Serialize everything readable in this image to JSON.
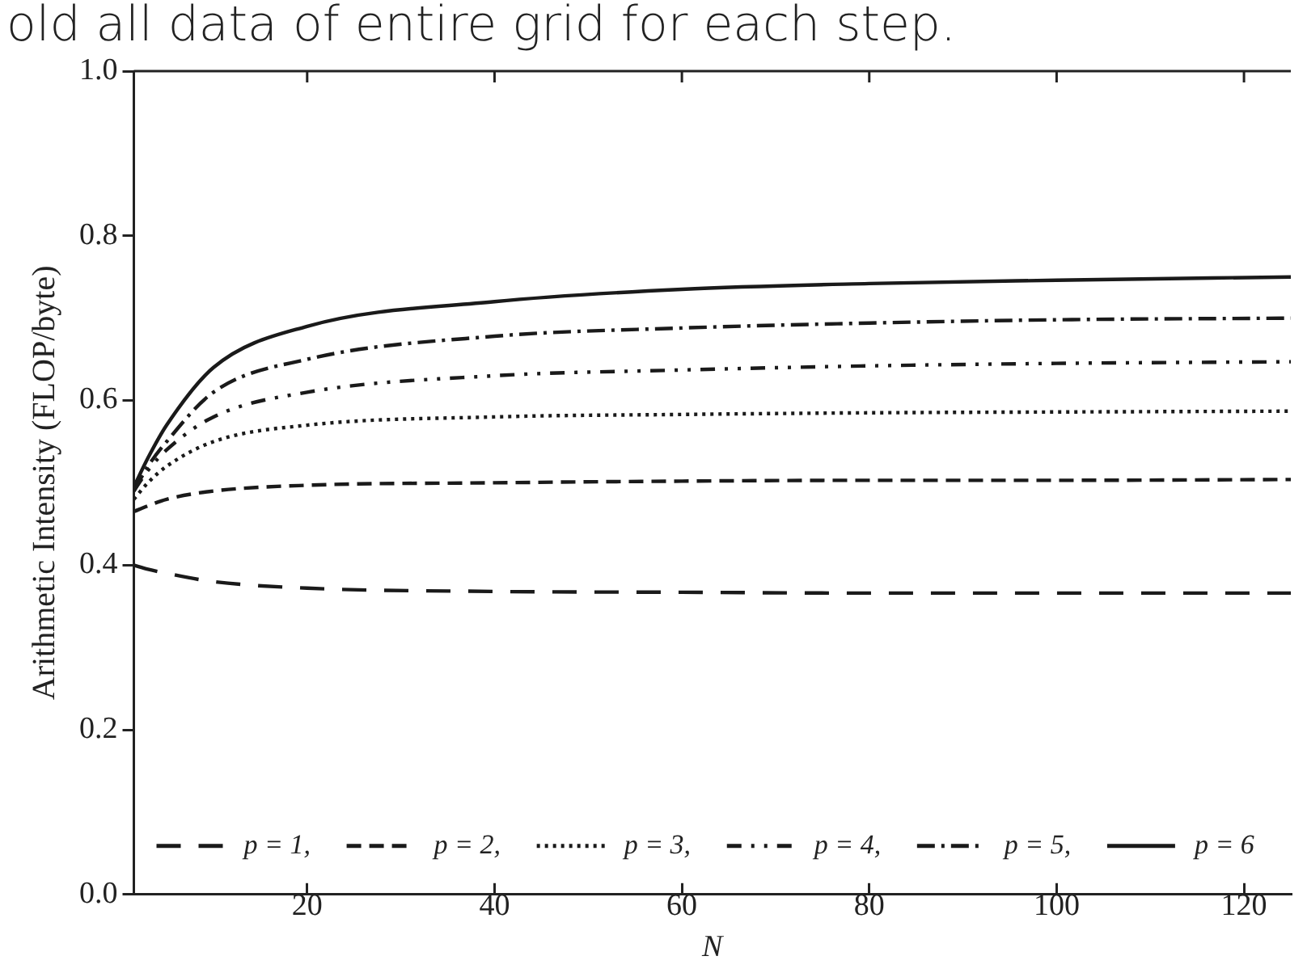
{
  "chart_data": {
    "type": "line",
    "xlabel": "N",
    "ylabel": "Arithmetic Intensity (FLOP/byte)",
    "annotations": [
      "old all data of entire grid for each step."
    ],
    "x": [
      1.5,
      3,
      5,
      10,
      20,
      40,
      60,
      80,
      100,
      125
    ],
    "series": [
      {
        "name": "p = 1,",
        "color": "#1a1a1a",
        "line_style": "long_dashed",
        "values": [
          0.4,
          0.395,
          0.39,
          0.38,
          0.372,
          0.368,
          0.367,
          0.366,
          0.366,
          0.366
        ]
      },
      {
        "name": "p = 2,",
        "color": "#1a1a1a",
        "line_style": "dashed",
        "values": [
          0.465,
          0.472,
          0.48,
          0.49,
          0.497,
          0.5,
          0.502,
          0.503,
          0.503,
          0.504
        ]
      },
      {
        "name": "p = 3,",
        "color": "#1a1a1a",
        "line_style": "dotted",
        "values": [
          0.48,
          0.5,
          0.52,
          0.55,
          0.57,
          0.58,
          0.583,
          0.585,
          0.586,
          0.587
        ]
      },
      {
        "name": "p = 4,",
        "color": "#1a1a1a",
        "line_style": "dashdotdot",
        "values": [
          0.49,
          0.515,
          0.54,
          0.58,
          0.61,
          0.63,
          0.637,
          0.642,
          0.645,
          0.647
        ]
      },
      {
        "name": "p = 5,",
        "color": "#1a1a1a",
        "line_style": "dashdot",
        "values": [
          0.49,
          0.52,
          0.55,
          0.61,
          0.65,
          0.678,
          0.688,
          0.694,
          0.698,
          0.7
        ]
      },
      {
        "name": "p = 6",
        "color": "#1a1a1a",
        "line_style": "solid",
        "values": [
          0.495,
          0.53,
          0.57,
          0.64,
          0.69,
          0.72,
          0.735,
          0.742,
          0.746,
          0.75
        ]
      }
    ],
    "xlim": [
      1.5,
      125
    ],
    "xticks": [
      20,
      40,
      60,
      80,
      100,
      120
    ],
    "ylim": [
      0,
      1
    ],
    "yticks": [
      {
        "value": 0,
        "label": "0.0"
      },
      {
        "value": 0.2,
        "label": "0.2"
      },
      {
        "value": 0.4,
        "label": "0.4"
      },
      {
        "value": 0.6,
        "label": "0.6"
      },
      {
        "value": 0.8,
        "label": "0.8"
      },
      {
        "value": 1,
        "label": "1.0"
      }
    ],
    "grid": false,
    "legend": "bottom",
    "marker": "none"
  }
}
